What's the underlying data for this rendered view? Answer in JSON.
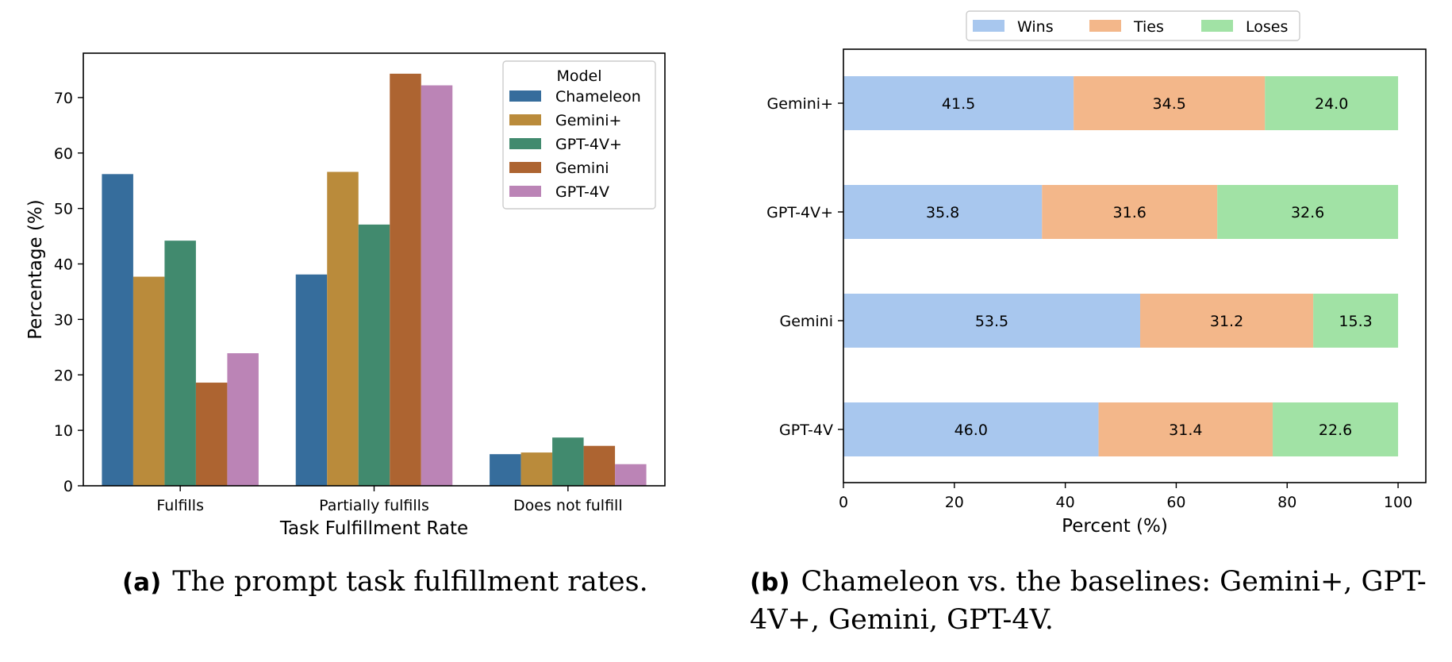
{
  "chart_data": [
    {
      "type": "bar",
      "xlabel": "Task Fulfillment Rate",
      "ylabel": "Percentage (%)",
      "categories": [
        "Fulfills",
        "Partially fulfills",
        "Does not fulfill"
      ],
      "ylim": [
        0,
        78
      ],
      "yticks": [
        0,
        10,
        20,
        30,
        40,
        50,
        60,
        70
      ],
      "legend": {
        "title": "Model",
        "placement": "top-right"
      },
      "grid": false,
      "series": [
        {
          "name": "Chameleon",
          "color": "#366d9c",
          "values": [
            56.2,
            38.1,
            5.7
          ]
        },
        {
          "name": "Gemini+",
          "color": "#ba8b3b",
          "values": [
            37.7,
            56.6,
            6.0
          ]
        },
        {
          "name": "GPT-4V+",
          "color": "#418a6e",
          "values": [
            44.2,
            47.1,
            8.7
          ]
        },
        {
          "name": "Gemini",
          "color": "#ad6431",
          "values": [
            18.6,
            74.3,
            7.2
          ]
        },
        {
          "name": "GPT-4V",
          "color": "#bb84b6",
          "values": [
            23.9,
            72.2,
            3.9
          ]
        }
      ]
    },
    {
      "type": "bar",
      "orientation": "horizontal",
      "stacked": true,
      "xlabel": "Percent (%)",
      "ylabel": "",
      "categories": [
        "Gemini+",
        "GPT-4V+",
        "Gemini",
        "GPT-4V"
      ],
      "xlim": [
        0,
        105
      ],
      "xticks": [
        0,
        20,
        40,
        60,
        80,
        100
      ],
      "legend": {
        "placement": "top-center, outside"
      },
      "grid": false,
      "series": [
        {
          "name": "Wins",
          "color": "#a8c7ee",
          "values": [
            41.5,
            35.8,
            53.5,
            46.0
          ]
        },
        {
          "name": "Ties",
          "color": "#f3b78a",
          "values": [
            34.5,
            31.6,
            31.2,
            31.4
          ]
        },
        {
          "name": "Loses",
          "color": "#a1e2a5",
          "values": [
            24.0,
            32.6,
            15.3,
            22.6
          ]
        }
      ]
    }
  ],
  "captions": {
    "a": {
      "tag": "(a)",
      "text": "The prompt task fulfillment rates."
    },
    "b": {
      "tag": "(b)",
      "text": "Chameleon vs. the baselines: Gemini+, GPT-4V+, Gemini, GPT-4V."
    }
  }
}
